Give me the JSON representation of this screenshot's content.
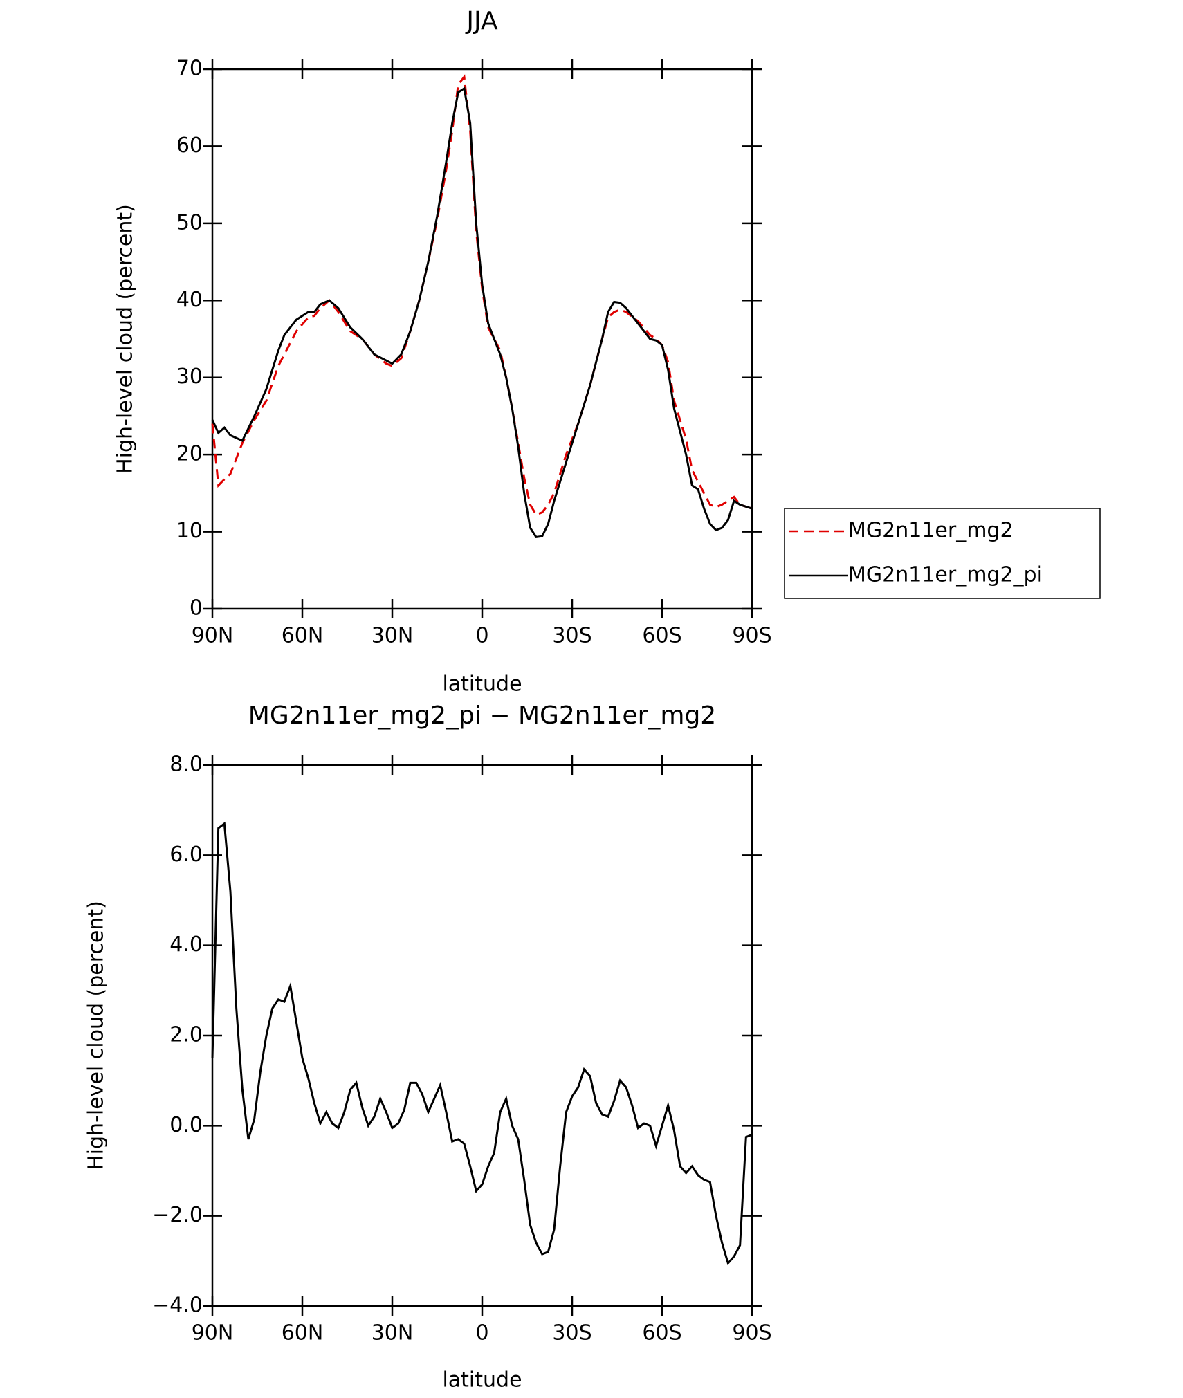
{
  "chart_data": [
    {
      "type": "line",
      "title": "JJA",
      "x_label": "latitude",
      "y_label": "High-level cloud (percent)",
      "x": [
        90,
        88,
        86,
        84,
        80,
        76,
        72,
        68,
        66,
        62,
        58,
        56,
        54,
        51,
        48,
        44,
        40,
        36,
        32,
        30,
        27,
        24,
        21,
        18,
        15,
        12,
        10,
        8,
        6,
        4,
        2,
        0,
        -2,
        -6,
        -8,
        -10,
        -12,
        -14,
        -16,
        -18,
        -20,
        -22,
        -24,
        -28,
        -32,
        -36,
        -40,
        -42,
        -44,
        -46,
        -48,
        -52,
        -56,
        -58,
        -60,
        -62,
        -64,
        -68,
        -70,
        -72,
        -74,
        -76,
        -78,
        -80,
        -82,
        -84,
        -86,
        -90
      ],
      "series": [
        {
          "name": "MG2n11er_mg2",
          "color": "#e00000",
          "dashed": true,
          "values": [
            24,
            16,
            16.8,
            17.5,
            21.5,
            24.5,
            27,
            31.5,
            33,
            36,
            37.8,
            38,
            39,
            40,
            38.5,
            36,
            35,
            33,
            31.8,
            31.5,
            32.5,
            36,
            40,
            45,
            50.5,
            57,
            62,
            68,
            69,
            62,
            49,
            41.5,
            36.5,
            33.5,
            30,
            26,
            21.5,
            17,
            13.5,
            12.2,
            12.5,
            13.5,
            15,
            20,
            24,
            29,
            35,
            37.8,
            38.5,
            38.8,
            38.5,
            37.3,
            35.5,
            35,
            34.2,
            32,
            27,
            22,
            18,
            16.5,
            15,
            13.5,
            13.2,
            13.5,
            14,
            14.5,
            13.5,
            13
          ]
        },
        {
          "name": "MG2n11er_mg2_pi",
          "color": "#000000",
          "dashed": false,
          "values": [
            24.5,
            22.8,
            23.5,
            22.5,
            21.8,
            25,
            28.5,
            33.5,
            35.5,
            37.5,
            38.5,
            38.5,
            39.5,
            40,
            39,
            36.5,
            35,
            33,
            32.2,
            31.8,
            33,
            36,
            40,
            45,
            51,
            58,
            63,
            67,
            67.5,
            63,
            50,
            42,
            37,
            33,
            30,
            26,
            21,
            15,
            10.5,
            9.3,
            9.4,
            11,
            14,
            19,
            24,
            29,
            35,
            38.5,
            39.8,
            39.7,
            39,
            37,
            35,
            34.8,
            34.2,
            31,
            26,
            20,
            16,
            15.5,
            13,
            11,
            10.2,
            10.5,
            11.5,
            14,
            13.5,
            13
          ]
        }
      ],
      "xlim": [
        90,
        -90
      ],
      "xticks": [
        {
          "value": 90,
          "label": "90N"
        },
        {
          "value": 60,
          "label": "60N"
        },
        {
          "value": 30,
          "label": "30N"
        },
        0,
        {
          "value": -30,
          "label": "30S"
        },
        {
          "value": -60,
          "label": "60S"
        },
        {
          "value": -90,
          "label": "90S"
        }
      ],
      "ylim": [
        0,
        70
      ],
      "yticks": [
        0,
        10,
        20,
        30,
        40,
        50,
        60,
        70
      ],
      "legend": "right"
    },
    {
      "type": "line",
      "title": "MG2n11er_mg2_pi − MG2n11er_mg2",
      "x_label": "latitude",
      "y_label": "High-level cloud (percent)",
      "x": [
        90,
        88,
        86,
        84,
        82,
        80,
        78,
        76,
        74,
        72,
        70,
        68,
        66,
        64,
        62,
        60,
        58,
        56,
        54,
        52,
        50,
        48,
        46,
        44,
        42,
        40,
        38,
        36,
        34,
        32,
        30,
        28,
        26,
        24,
        22,
        20,
        18,
        16,
        14,
        12,
        10,
        8,
        6,
        4,
        2,
        0,
        -2,
        -4,
        -6,
        -8,
        -10,
        -12,
        -14,
        -16,
        -18,
        -20,
        -22,
        -24,
        -26,
        -28,
        -30,
        -32,
        -34,
        -36,
        -38,
        -40,
        -42,
        -44,
        -46,
        -48,
        -50,
        -52,
        -54,
        -56,
        -58,
        -60,
        -62,
        -64,
        -66,
        -68,
        -70,
        -72,
        -74,
        -76,
        -78,
        -80,
        -82,
        -84,
        -86,
        -88,
        -90
      ],
      "series": [
        {
          "color": "#000000",
          "dashed": false,
          "values": [
            1.5,
            6.6,
            6.7,
            5.2,
            2.6,
            0.8,
            -0.3,
            0.15,
            1.2,
            2.0,
            2.6,
            2.8,
            2.75,
            3.1,
            2.3,
            1.5,
            1.05,
            0.5,
            0.05,
            0.3,
            0.05,
            -0.05,
            0.3,
            0.8,
            0.95,
            0.4,
            0.0,
            0.2,
            0.6,
            0.3,
            -0.05,
            0.05,
            0.35,
            0.95,
            0.95,
            0.7,
            0.3,
            0.6,
            0.9,
            0.3,
            -0.35,
            -0.3,
            -0.4,
            -0.9,
            -1.45,
            -1.3,
            -0.9,
            -0.6,
            0.3,
            0.6,
            0.0,
            -0.3,
            -1.2,
            -2.2,
            -2.6,
            -2.85,
            -2.8,
            -2.3,
            -0.9,
            0.3,
            0.65,
            0.85,
            1.25,
            1.1,
            0.5,
            0.25,
            0.2,
            0.55,
            1.0,
            0.85,
            0.45,
            -0.05,
            0.05,
            0.0,
            -0.45,
            0.0,
            0.45,
            -0.1,
            -0.9,
            -1.05,
            -0.9,
            -1.1,
            -1.2,
            -1.25,
            -2.0,
            -2.6,
            -3.05,
            -2.9,
            -2.65,
            -0.25,
            -0.2
          ]
        }
      ],
      "xlim": [
        90,
        -90
      ],
      "xticks": [
        {
          "value": 90,
          "label": "90N"
        },
        {
          "value": 60,
          "label": "60N"
        },
        {
          "value": 30,
          "label": "30N"
        },
        0,
        {
          "value": -30,
          "label": "30S"
        },
        {
          "value": -60,
          "label": "60S"
        },
        {
          "value": -90,
          "label": "90S"
        }
      ],
      "ylim": [
        -4,
        8
      ],
      "yticks": [
        {
          "value": -4,
          "label": "−4.0"
        },
        {
          "value": -2,
          "label": "−2.0"
        },
        {
          "value": 0,
          "label": "0.0"
        },
        {
          "value": 2,
          "label": "2.0"
        },
        {
          "value": 4,
          "label": "4.0"
        },
        {
          "value": 6,
          "label": "6.0"
        },
        {
          "value": 8,
          "label": "8.0"
        }
      ]
    }
  ]
}
